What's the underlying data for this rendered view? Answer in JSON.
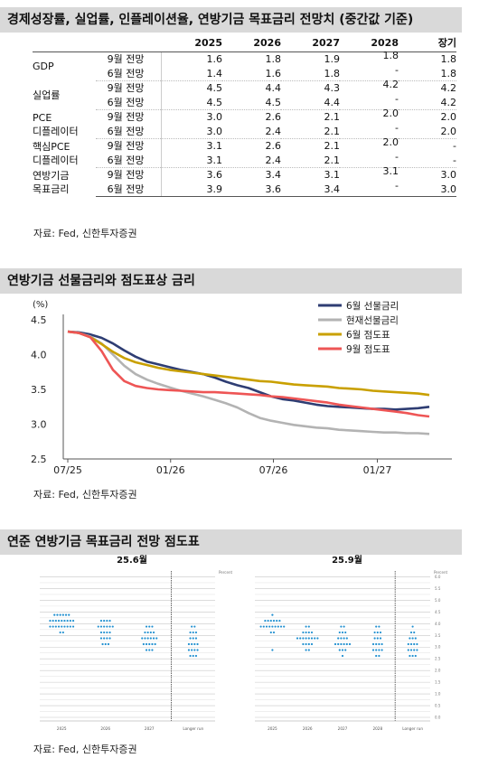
{
  "section1": {
    "title": "경제성장률, 실업률, 인플레이션율, 연방기금 목표금리 전망치 (중간값 기준)",
    "source": "자료: Fed, 신한투자증권",
    "headers": [
      "",
      "",
      "2025",
      "2026",
      "2027",
      "2028",
      "장기"
    ],
    "groups": [
      {
        "label": "GDP",
        "rows": [
          {
            "sub": "9월 전망",
            "v": [
              "1.6",
              "1.8",
              "1.9",
              "1.8",
              "1.8"
            ]
          },
          {
            "sub": "6월 전망",
            "v": [
              "1.4",
              "1.6",
              "1.8",
              "-",
              "1.8"
            ]
          }
        ]
      },
      {
        "label": "실업률",
        "rows": [
          {
            "sub": "9월 전망",
            "v": [
              "4.5",
              "4.4",
              "4.3",
              "4.2",
              "4.2"
            ]
          },
          {
            "sub": "6월 전망",
            "v": [
              "4.5",
              "4.5",
              "4.4",
              "-",
              "4.2"
            ]
          }
        ]
      },
      {
        "label": "PCE\n디플레이터",
        "rows": [
          {
            "sub": "9월 전망",
            "v": [
              "3.0",
              "2.6",
              "2.1",
              "2.0",
              "2.0"
            ]
          },
          {
            "sub": "6월 전망",
            "v": [
              "3.0",
              "2.4",
              "2.1",
              "-",
              "2.0"
            ]
          }
        ]
      },
      {
        "label": "핵심PCE\n디플레이터",
        "rows": [
          {
            "sub": "9월 전망",
            "v": [
              "3.1",
              "2.6",
              "2.1",
              "2.0",
              "-"
            ]
          },
          {
            "sub": "6월 전망",
            "v": [
              "3.1",
              "2.4",
              "2.1",
              "-",
              "-"
            ]
          }
        ]
      },
      {
        "label": "연방기금\n목표금리",
        "rows": [
          {
            "sub": "9월 전망",
            "v": [
              "3.6",
              "3.4",
              "3.1",
              "3.1",
              "3.0"
            ]
          },
          {
            "sub": "6월 전망",
            "v": [
              "3.9",
              "3.6",
              "3.4",
              "-",
              "3.0"
            ]
          }
        ]
      }
    ]
  },
  "section2": {
    "title": "연방기금 선물금리와 점도표상 금리",
    "source": "자료: Fed, 신한투자증권"
  },
  "section3": {
    "title": "연준 연방기금 목표금리 전망 점도표",
    "source": "자료: Fed, 신한투자증권"
  },
  "chart_data": [
    {
      "type": "line",
      "title": "연방기금 선물금리와 점도표상 금리",
      "ylabel": "(%)",
      "ylim": [
        2.5,
        4.5
      ],
      "yticks": [
        2.5,
        3.0,
        3.5,
        4.0,
        4.5
      ],
      "xticks": [
        "07/25",
        "01/26",
        "07/26",
        "01/27"
      ],
      "legend_position": "top-right",
      "x": [
        0,
        1,
        2,
        3,
        4,
        5,
        6,
        7,
        8,
        9,
        10,
        11,
        12,
        13,
        14,
        15,
        16,
        17,
        18,
        19,
        20,
        21,
        22,
        23,
        24,
        25,
        26,
        27,
        28,
        29,
        30,
        31,
        32
      ],
      "series": [
        {
          "name": "6월 선물금리",
          "color": "#2e3d73",
          "values": [
            4.33,
            4.32,
            4.29,
            4.24,
            4.16,
            4.06,
            3.97,
            3.9,
            3.86,
            3.82,
            3.78,
            3.75,
            3.72,
            3.67,
            3.61,
            3.56,
            3.52,
            3.46,
            3.4,
            3.36,
            3.34,
            3.31,
            3.28,
            3.26,
            3.25,
            3.24,
            3.23,
            3.22,
            3.22,
            3.21,
            3.22,
            3.23,
            3.25
          ]
        },
        {
          "name": "현재선물금리",
          "color": "#b3b3b3",
          "values": [
            4.33,
            4.31,
            4.26,
            4.16,
            4.0,
            3.84,
            3.72,
            3.64,
            3.58,
            3.53,
            3.48,
            3.44,
            3.4,
            3.35,
            3.3,
            3.24,
            3.16,
            3.09,
            3.05,
            3.02,
            2.99,
            2.97,
            2.95,
            2.94,
            2.92,
            2.91,
            2.9,
            2.89,
            2.88,
            2.88,
            2.87,
            2.87,
            2.86
          ]
        },
        {
          "name": "6월 점도표",
          "color": "#c9a000",
          "values": [
            4.33,
            4.31,
            4.25,
            4.15,
            4.04,
            3.95,
            3.89,
            3.85,
            3.81,
            3.78,
            3.76,
            3.74,
            3.72,
            3.7,
            3.68,
            3.66,
            3.64,
            3.62,
            3.61,
            3.59,
            3.57,
            3.56,
            3.55,
            3.54,
            3.52,
            3.51,
            3.5,
            3.48,
            3.47,
            3.46,
            3.45,
            3.44,
            3.42
          ]
        },
        {
          "name": "9월 점도표",
          "color": "#ee5555",
          "values": [
            4.33,
            4.31,
            4.25,
            4.05,
            3.78,
            3.62,
            3.55,
            3.52,
            3.5,
            3.49,
            3.48,
            3.47,
            3.46,
            3.46,
            3.45,
            3.44,
            3.43,
            3.42,
            3.4,
            3.39,
            3.37,
            3.35,
            3.33,
            3.31,
            3.28,
            3.26,
            3.24,
            3.22,
            3.2,
            3.18,
            3.16,
            3.13,
            3.11
          ]
        }
      ]
    },
    {
      "type": "scatter",
      "title": "25.6월",
      "color": "#1f8fd0",
      "categories": [
        "2025",
        "2026",
        "2027",
        "Longer run"
      ],
      "ylabel": "Percent",
      "columns": [
        {
          "rows": [
            [
              4.375,
              6
            ],
            [
              4.125,
              9
            ],
            [
              3.875,
              9
            ],
            [
              3.625,
              2
            ]
          ]
        },
        {
          "rows": [
            [
              4.125,
              4
            ],
            [
              3.875,
              6
            ],
            [
              3.625,
              4
            ],
            [
              3.375,
              4
            ],
            [
              3.125,
              3
            ]
          ]
        },
        {
          "rows": [
            [
              3.875,
              3
            ],
            [
              3.625,
              4
            ],
            [
              3.375,
              6
            ],
            [
              3.125,
              5
            ],
            [
              2.875,
              3
            ]
          ]
        },
        {
          "rows": [
            [
              3.875,
              2
            ],
            [
              3.625,
              3
            ],
            [
              3.375,
              3
            ],
            [
              3.125,
              4
            ],
            [
              2.875,
              4
            ],
            [
              2.625,
              3
            ]
          ]
        }
      ]
    },
    {
      "type": "scatter",
      "title": "25.9월",
      "color": "#1f8fd0",
      "categories": [
        "2025",
        "2026",
        "2027",
        "2028",
        "Longer run"
      ],
      "ylabel": "Percent",
      "yticks": [
        0.0,
        0.5,
        1.0,
        1.5,
        2.0,
        2.5,
        3.0,
        3.5,
        4.0,
        4.5,
        5.0,
        5.5,
        6.0
      ],
      "columns": [
        {
          "rows": [
            [
              4.375,
              1
            ],
            [
              4.125,
              6
            ],
            [
              3.875,
              9
            ],
            [
              3.625,
              2
            ],
            [
              2.875,
              1
            ]
          ]
        },
        {
          "rows": [
            [
              3.875,
              2
            ],
            [
              3.625,
              4
            ],
            [
              3.375,
              8
            ],
            [
              3.125,
              4
            ],
            [
              2.875,
              2
            ]
          ]
        },
        {
          "rows": [
            [
              3.875,
              2
            ],
            [
              3.625,
              3
            ],
            [
              3.375,
              4
            ],
            [
              3.125,
              6
            ],
            [
              2.875,
              3
            ],
            [
              2.625,
              1
            ]
          ]
        },
        {
          "rows": [
            [
              3.875,
              2
            ],
            [
              3.625,
              3
            ],
            [
              3.375,
              3
            ],
            [
              3.125,
              4
            ],
            [
              2.875,
              4
            ],
            [
              2.625,
              2
            ]
          ]
        },
        {
          "rows": [
            [
              3.875,
              1
            ],
            [
              3.625,
              2
            ],
            [
              3.375,
              3
            ],
            [
              3.125,
              4
            ],
            [
              2.875,
              4
            ],
            [
              2.625,
              3
            ]
          ]
        }
      ]
    }
  ]
}
